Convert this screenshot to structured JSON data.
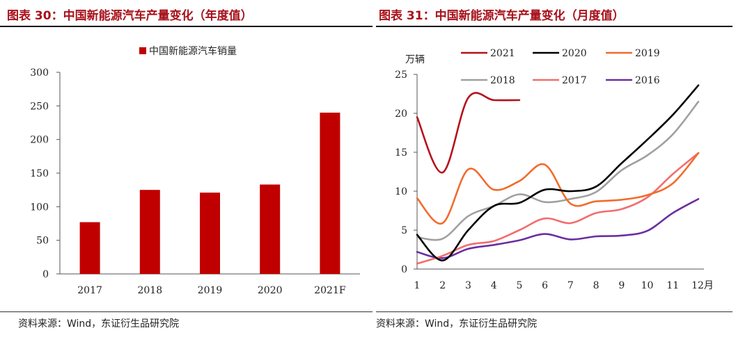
{
  "left": {
    "title": "图表 30：中国新能源汽车产量变化（年度值）",
    "source": "资料来源：Wind，东证衍生品研究院"
  },
  "right": {
    "title": "图表 31：中国新能源汽车产量变化（月度值）",
    "source": "资料来源：Wind，东证衍生品研究院"
  },
  "colors": {
    "title": "#a8111a",
    "bar": "#c00000"
  },
  "chart_data": [
    {
      "type": "bar",
      "title": "",
      "legend": {
        "placement": "top-center"
      },
      "series": [
        {
          "name": "中国新能源汽车销量",
          "color": "#c00000",
          "values": [
            77,
            125,
            121,
            133,
            240
          ]
        }
      ],
      "categories": [
        "2017",
        "2018",
        "2019",
        "2020",
        "2021F"
      ],
      "ylim": [
        0,
        300
      ],
      "yticks": [
        0,
        50,
        100,
        150,
        200,
        250,
        300
      ],
      "xlabel": "",
      "ylabel": "",
      "grid": false
    },
    {
      "type": "line",
      "title": "",
      "ylabel": "万辆",
      "xlabel": "",
      "xlim": [
        1,
        12
      ],
      "xticks": [
        "1",
        "2",
        "3",
        "4",
        "5",
        "6",
        "7",
        "8",
        "9",
        "10",
        "11",
        "12月"
      ],
      "ylim": [
        0,
        25
      ],
      "yticks": [
        0,
        5,
        10,
        15,
        20,
        25
      ],
      "grid": false,
      "legend": {
        "placement": "top",
        "columns": 3
      },
      "series": [
        {
          "name": "2021",
          "color": "#b5121b",
          "x": [
            1,
            2,
            3,
            4,
            5
          ],
          "values": [
            19.5,
            12.4,
            22.0,
            21.7,
            21.7
          ]
        },
        {
          "name": "2020",
          "color": "#000000",
          "x": [
            1,
            2,
            3,
            4,
            5,
            6,
            7,
            8,
            9,
            10,
            11,
            12
          ],
          "values": [
            4.4,
            1.1,
            5.0,
            8.1,
            8.5,
            10.2,
            10.0,
            10.6,
            13.6,
            16.6,
            19.8,
            23.6
          ]
        },
        {
          "name": "2019",
          "color": "#f26b2c",
          "x": [
            1,
            2,
            3,
            4,
            5,
            6,
            7,
            8,
            9,
            10,
            11,
            12
          ],
          "values": [
            9.1,
            5.9,
            12.8,
            10.2,
            11.3,
            13.4,
            8.4,
            8.7,
            8.9,
            9.5,
            11.0,
            14.9
          ]
        },
        {
          "name": "2018",
          "color": "#a0a0a0",
          "x": [
            1,
            2,
            3,
            4,
            5,
            6,
            7,
            8,
            9,
            10,
            11,
            12
          ],
          "values": [
            4.1,
            3.9,
            6.8,
            8.1,
            9.6,
            8.6,
            9.0,
            9.9,
            12.7,
            14.6,
            17.3,
            21.5
          ]
        },
        {
          "name": "2017",
          "color": "#f26d6d",
          "x": [
            1,
            2,
            3,
            4,
            5,
            6,
            7,
            8,
            9,
            10,
            11,
            12
          ],
          "values": [
            0.7,
            1.7,
            3.1,
            3.6,
            5.0,
            6.5,
            5.9,
            7.2,
            7.7,
            9.2,
            12.2,
            14.9
          ]
        },
        {
          "name": "2016",
          "color": "#6b2fa0",
          "x": [
            1,
            2,
            3,
            4,
            5,
            6,
            7,
            8,
            9,
            10,
            11,
            12
          ],
          "values": [
            2.2,
            1.4,
            2.6,
            3.1,
            3.7,
            4.5,
            3.8,
            4.2,
            4.3,
            4.9,
            7.2,
            9.0
          ]
        }
      ]
    }
  ]
}
